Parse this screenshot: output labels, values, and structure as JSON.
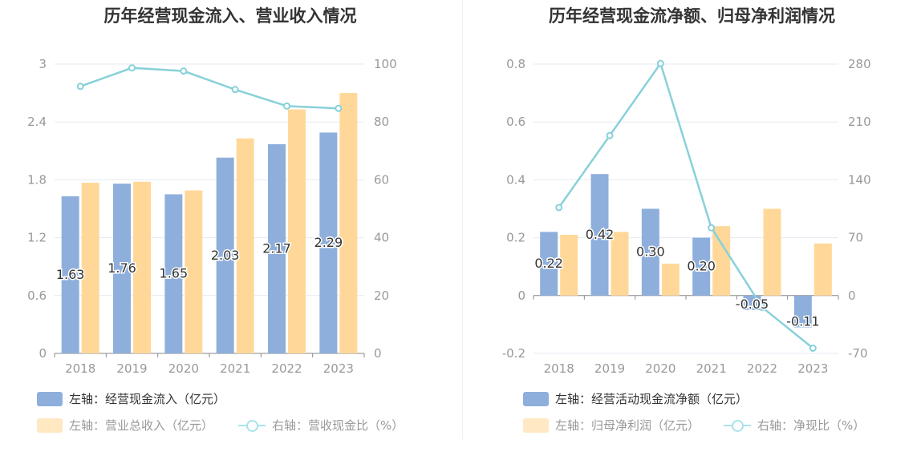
{
  "colors": {
    "bar_left": "#8eafdc",
    "bar_right": "#ffd899",
    "line": "#88d1da",
    "grid": "#e6e9f2",
    "axis": "#999999"
  },
  "chart_data": [
    {
      "type": "bar",
      "title": "历年经营现金流入、营业收入情况",
      "categories": [
        "2018",
        "2019",
        "2020",
        "2021",
        "2022",
        "2023"
      ],
      "series": [
        {
          "name": "左轴：经营现金流入（亿元）",
          "axis": "left",
          "kind": "bar",
          "values": [
            1.63,
            1.76,
            1.65,
            2.03,
            2.17,
            2.29
          ],
          "labels": [
            "1.63",
            "1.76",
            "1.65",
            "2.03",
            "2.17",
            "2.29"
          ]
        },
        {
          "name": "左轴：营业总收入（亿元）",
          "axis": "left",
          "kind": "bar",
          "values": [
            1.77,
            1.78,
            1.69,
            2.23,
            2.53,
            2.7
          ]
        },
        {
          "name": "右轴：营收现金比（%）",
          "axis": "right",
          "kind": "line",
          "values": [
            92.3,
            98.7,
            97.6,
            91.2,
            85.5,
            84.7
          ]
        }
      ],
      "left_axis": {
        "min": 0,
        "max": 3,
        "ticks": [
          "0",
          "0.6",
          "1.2",
          "1.8",
          "2.4",
          "3"
        ]
      },
      "right_axis": {
        "min": 0,
        "max": 100,
        "ticks": [
          "0",
          "20",
          "40",
          "60",
          "80",
          "100"
        ]
      }
    },
    {
      "type": "bar",
      "title": "历年经营现金流净额、归母净利润情况",
      "categories": [
        "2018",
        "2019",
        "2020",
        "2021",
        "2022",
        "2023"
      ],
      "series": [
        {
          "name": "左轴：经营活动现金流净额（亿元）",
          "axis": "left",
          "kind": "bar",
          "values": [
            0.22,
            0.42,
            0.3,
            0.2,
            -0.05,
            -0.11
          ],
          "labels": [
            "0.22",
            "0.42",
            "0.30",
            "0.20",
            "-0.05",
            "-0.11"
          ]
        },
        {
          "name": "左轴：归母净利润（亿元）",
          "axis": "left",
          "kind": "bar",
          "values": [
            0.21,
            0.22,
            0.11,
            0.24,
            0.3,
            0.18
          ]
        },
        {
          "name": "右轴：净现比（%）",
          "axis": "right",
          "kind": "line",
          "values": [
            106.5,
            193.5,
            280.8,
            82,
            -14.2,
            -63.7
          ]
        }
      ],
      "left_axis": {
        "min": -0.2,
        "max": 0.8,
        "ticks": [
          "-0.2",
          "0",
          "0.2",
          "0.4",
          "0.6",
          "0.8"
        ]
      },
      "right_axis": {
        "min": -70,
        "max": 280,
        "ticks": [
          "-70",
          "0",
          "70",
          "140",
          "210",
          "280"
        ]
      }
    }
  ]
}
